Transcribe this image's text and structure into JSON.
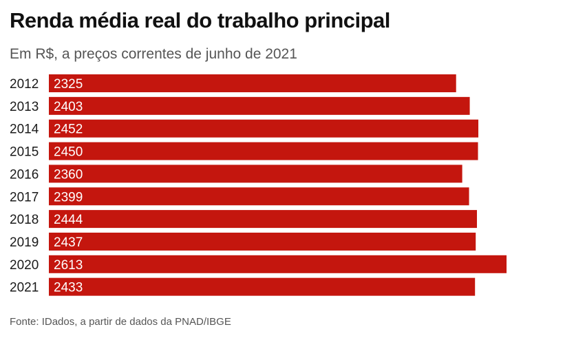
{
  "title": "Renda média real do trabalho principal",
  "subtitle": "Em R$, a preços correntes de junho de 2021",
  "source": "Fonte: IDados, a partir de dados da PNAD/IBGE",
  "colors": {
    "bar": "#c4160e",
    "bar_label": "#ffffff",
    "category_label": "#1a1a1a"
  },
  "chart_data": {
    "type": "bar",
    "orientation": "horizontal",
    "categories": [
      "2012",
      "2013",
      "2014",
      "2015",
      "2016",
      "2017",
      "2018",
      "2019",
      "2020",
      "2021"
    ],
    "values": [
      2325,
      2403,
      2452,
      2450,
      2360,
      2399,
      2444,
      2437,
      2613,
      2433
    ],
    "data_labels": [
      "2325",
      "2403",
      "2452",
      "2450",
      "2360",
      "2399",
      "2444",
      "2437",
      "2613",
      "2433"
    ],
    "title": "Renda média real do trabalho principal",
    "xlabel": "",
    "ylabel": "",
    "xlim": [
      0,
      2613
    ],
    "grid": false,
    "legend": "none"
  }
}
